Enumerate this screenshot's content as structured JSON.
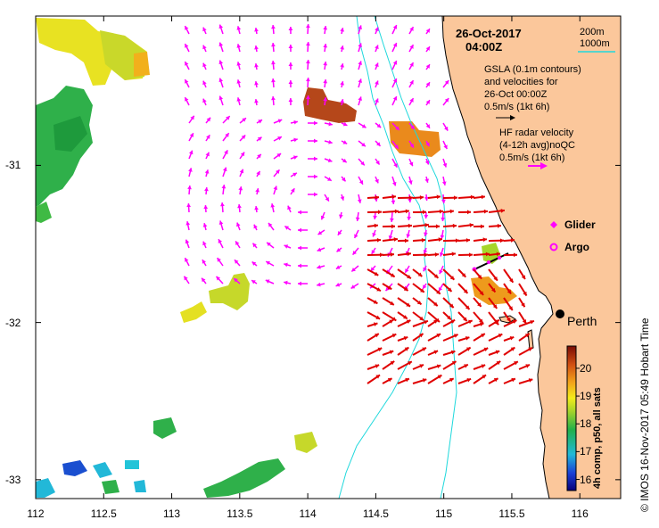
{
  "map": {
    "date": "26-Oct-2017",
    "time": "04:00Z",
    "contour_legend": [
      "200m",
      "1000m"
    ],
    "gsla_legend": [
      "GSLA (0.1m contours)",
      "and velocities for",
      "26-Oct 00:00Z",
      "0.5m/s (1kt 6h)"
    ],
    "hf_legend": [
      "HF radar velocity",
      "(4-12h avg)noQC",
      "0.5m/s (1kt 6h)"
    ],
    "glider_label": "Glider",
    "argo_label": "Argo",
    "city_label": "Perth",
    "credit": "© IMOS 16-Nov-2017 05:49 Hobart Time",
    "colorbar_title": "4h comp, p50, all sats",
    "colorbar_ticks": [
      "16",
      "17",
      "18",
      "19",
      "20"
    ],
    "colorbar_range": [
      15.6,
      20.8
    ],
    "x_ticks": [
      "112",
      "112.5",
      "113",
      "113.5",
      "114",
      "114.5",
      "115",
      "115.5",
      "116"
    ],
    "y_ticks": [
      "-31",
      "-32",
      "-33"
    ],
    "lon_range": [
      112,
      116.3
    ],
    "lat_range": [
      -30.05,
      -33.12
    ]
  },
  "colors": {
    "land": "#fbc79b",
    "contour": "#1fd8dc",
    "gsla_arrow": "#ff00ff",
    "hf_arrow": "#e00000",
    "glider": "#ff00ff",
    "argo": "#ff00ff"
  }
}
